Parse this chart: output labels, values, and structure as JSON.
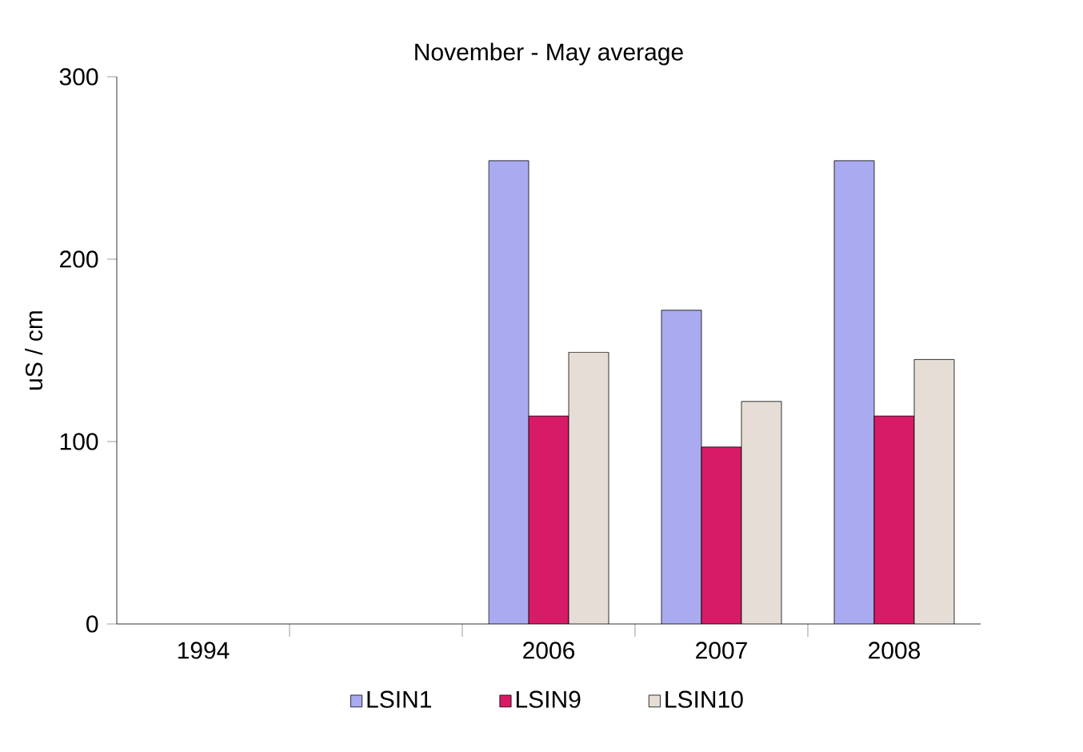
{
  "chart_data": {
    "type": "bar",
    "title": "November - May average",
    "ylabel": "uS / cm",
    "categories": [
      "1994",
      null,
      "2006",
      "2007",
      "2008"
    ],
    "series": [
      {
        "name": "LSIN1",
        "color": "#aaaaf0",
        "values": [
          null,
          null,
          254,
          172,
          254
        ]
      },
      {
        "name": "LSIN9",
        "color": "#d81b66",
        "values": [
          null,
          null,
          114,
          97,
          114
        ]
      },
      {
        "name": "LSIN10",
        "color": "#e6ded6",
        "values": [
          null,
          null,
          149,
          122,
          145
        ]
      }
    ],
    "ylim": [
      0,
      300
    ],
    "yticks": [
      0,
      100,
      200,
      300
    ],
    "grid": false,
    "legend": "bottom"
  }
}
